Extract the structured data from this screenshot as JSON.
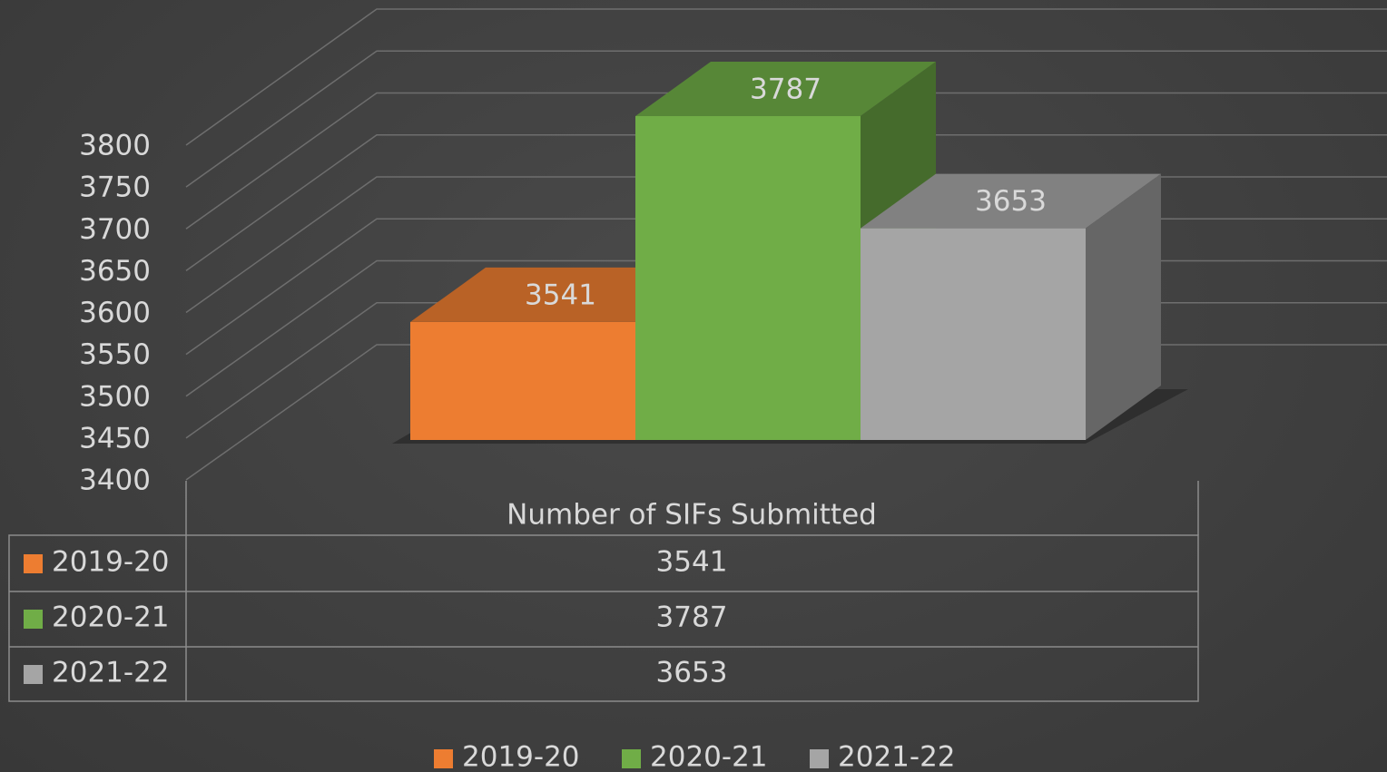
{
  "chart_data": {
    "type": "bar3d",
    "categories": [
      "Number of SIFs Submitted"
    ],
    "series": [
      {
        "name": "2019-20",
        "color": "#ed7d31",
        "values": [
          3541
        ]
      },
      {
        "name": "2020-21",
        "color": "#70ad47",
        "values": [
          3787
        ]
      },
      {
        "name": "2021-22",
        "color": "#a5a5a5",
        "values": [
          3653
        ]
      }
    ],
    "ylim": [
      3400,
      3800
    ],
    "yticks": [
      3400,
      3450,
      3500,
      3550,
      3600,
      3650,
      3700,
      3750,
      3800
    ],
    "grid": true,
    "legend": "bottom",
    "data_table": true
  }
}
